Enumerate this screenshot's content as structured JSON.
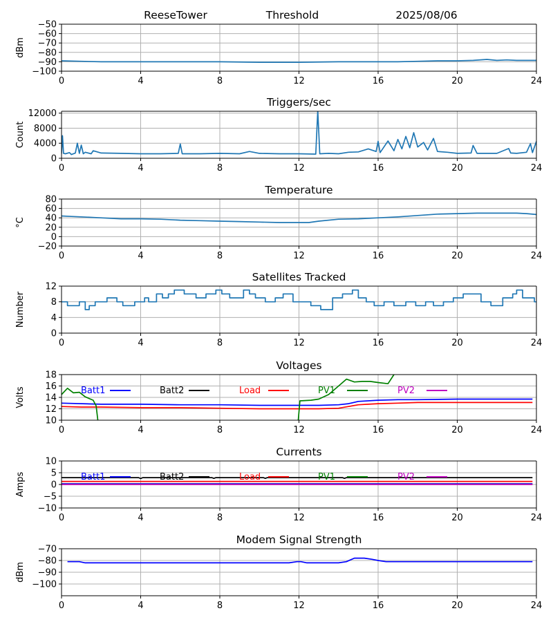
{
  "header": {
    "station": "ReeseTower",
    "panel": "Threshold",
    "date": "2025/08/06"
  },
  "chart_data": [
    {
      "id": "threshold",
      "type": "line",
      "title": "",
      "ylabel": "dBm",
      "xlim": [
        0,
        24
      ],
      "ylim": [
        -100,
        -50
      ],
      "xticks": [
        0,
        4,
        8,
        12,
        16,
        20,
        24
      ],
      "yticks": [
        -100,
        -90,
        -80,
        -70,
        -60,
        -50
      ],
      "yticklabels": [
        "−100",
        "−90",
        "−80",
        "−70",
        "−60",
        "−50"
      ],
      "grid": true,
      "series": [
        {
          "color": "#1f77b4",
          "x": [
            0,
            1,
            2,
            4,
            6,
            8,
            10,
            12,
            14,
            16,
            17,
            18,
            19,
            20,
            20.8,
            21.5,
            22,
            22.5,
            23,
            24
          ],
          "y": [
            -89,
            -89.5,
            -90,
            -90,
            -90,
            -90,
            -90.5,
            -90.5,
            -90,
            -90,
            -90,
            -89.5,
            -89,
            -89,
            -88.5,
            -87.5,
            -88.5,
            -88,
            -88.5,
            -88.5
          ]
        }
      ]
    },
    {
      "id": "triggers",
      "type": "line",
      "title": "Triggers/sec",
      "ylabel": "Count",
      "xlim": [
        0,
        24
      ],
      "ylim": [
        0,
        12500
      ],
      "xticks": [
        0,
        4,
        8,
        12,
        16,
        20,
        24
      ],
      "yticks": [
        0,
        4000,
        8000,
        12000
      ],
      "grid": true,
      "series": [
        {
          "color": "#1f77b4",
          "x": [
            0,
            0.05,
            0.1,
            0.2,
            0.4,
            0.5,
            0.7,
            0.8,
            0.9,
            1.0,
            1.1,
            1.2,
            1.5,
            1.6,
            2,
            3,
            4,
            5,
            5.9,
            6,
            6.1,
            7,
            8,
            9,
            9.5,
            10,
            11,
            12,
            12.85,
            12.95,
            13.05,
            13.5,
            14,
            14.5,
            15,
            15.5,
            15.9,
            16,
            16.1,
            16.5,
            16.8,
            17,
            17.2,
            17.4,
            17.6,
            17.8,
            18,
            18.3,
            18.5,
            18.8,
            19,
            19.5,
            20,
            20.7,
            20.8,
            21,
            22,
            22.6,
            22.7,
            23,
            23.5,
            23.7,
            23.8,
            24
          ],
          "y": [
            1200,
            6000,
            1300,
            1200,
            1500,
            1000,
            1400,
            4000,
            1300,
            3500,
            1200,
            1600,
            1200,
            2000,
            1400,
            1300,
            1200,
            1200,
            1300,
            3800,
            1200,
            1200,
            1300,
            1200,
            1800,
            1300,
            1200,
            1200,
            1100,
            12700,
            1200,
            1300,
            1200,
            1600,
            1700,
            2500,
            1800,
            4500,
            1500,
            4600,
            2000,
            5000,
            2500,
            5800,
            2800,
            6800,
            3000,
            4200,
            2200,
            5300,
            1800,
            1600,
            1300,
            1400,
            3400,
            1300,
            1300,
            2600,
            1400,
            1300,
            1600,
            3900,
            1500,
            4500
          ]
        }
      ]
    },
    {
      "id": "temperature",
      "type": "line",
      "title": "Temperature",
      "ylabel": "°C",
      "xlim": [
        0,
        24
      ],
      "ylim": [
        -20,
        80
      ],
      "xticks": [
        0,
        4,
        8,
        12,
        16,
        20,
        24
      ],
      "yticks": [
        -20,
        0,
        20,
        40,
        60,
        80
      ],
      "yticklabels": [
        "−20",
        "0",
        "20",
        "40",
        "60",
        "80"
      ],
      "grid": true,
      "series": [
        {
          "color": "#1f77b4",
          "x": [
            0,
            0.5,
            1,
            2,
            3,
            4,
            5,
            6,
            7,
            8,
            9,
            10,
            11,
            12,
            12.5,
            13,
            14,
            15,
            16,
            17,
            18,
            19,
            20,
            21,
            22,
            23,
            23.5,
            24
          ],
          "y": [
            44,
            43,
            42,
            40,
            38,
            38,
            37,
            35,
            34,
            33,
            32,
            31,
            30,
            30,
            30,
            33,
            37,
            38,
            40,
            42,
            45,
            48,
            49,
            50,
            50,
            50,
            49,
            47
          ]
        }
      ]
    },
    {
      "id": "satellites",
      "type": "line",
      "title": "Satellites Tracked",
      "ylabel": "Number",
      "xlim": [
        0,
        24
      ],
      "ylim": [
        0,
        12
      ],
      "xticks": [
        0,
        4,
        8,
        12,
        16,
        20,
        24
      ],
      "yticks": [
        0,
        4,
        8,
        12
      ],
      "grid": true,
      "series": [
        {
          "color": "#1f77b4",
          "step": true,
          "x": [
            0,
            0.3,
            0.9,
            1.2,
            1.4,
            1.7,
            2.3,
            2.8,
            3.1,
            3.7,
            4.2,
            4.4,
            4.8,
            5.1,
            5.4,
            5.7,
            6.2,
            6.8,
            7.3,
            7.8,
            8.1,
            8.5,
            9.2,
            9.5,
            9.8,
            10.3,
            10.8,
            11.2,
            11.7,
            12.6,
            13.1,
            13.7,
            14.2,
            14.7,
            15.0,
            15.4,
            15.8,
            16.3,
            16.8,
            17.4,
            17.9,
            18.4,
            18.8,
            19.3,
            19.8,
            20.3,
            21.2,
            21.7,
            22.3,
            22.8,
            23.0,
            23.3,
            23.9
          ],
          "y": [
            8,
            7,
            8,
            6,
            7,
            8,
            9,
            8,
            7,
            8,
            9,
            8,
            10,
            9,
            10,
            11,
            10,
            9,
            10,
            11,
            10,
            9,
            11,
            10,
            9,
            8,
            9,
            10,
            8,
            7,
            6,
            9,
            10,
            11,
            9,
            8,
            7,
            8,
            7,
            8,
            7,
            8,
            7,
            8,
            9,
            10,
            8,
            7,
            9,
            10,
            11,
            9,
            8
          ]
        }
      ]
    },
    {
      "id": "voltages",
      "type": "line",
      "title": "Voltages",
      "ylabel": "Volts",
      "xlim": [
        0,
        24
      ],
      "ylim": [
        10,
        18
      ],
      "xticks": [
        0,
        4,
        8,
        12,
        16,
        20,
        24
      ],
      "yticks": [
        10,
        12,
        14,
        16,
        18
      ],
      "grid": true,
      "legend": "inline-top",
      "series": [
        {
          "name": "Batt1",
          "color": "#0000ff",
          "x": [
            0,
            2,
            4,
            6,
            8,
            10,
            12,
            13,
            14,
            14.5,
            15,
            16,
            17,
            18,
            20,
            22,
            23.8
          ],
          "y": [
            13.0,
            12.8,
            12.8,
            12.7,
            12.7,
            12.6,
            12.6,
            12.6,
            12.7,
            12.9,
            13.3,
            13.5,
            13.6,
            13.6,
            13.7,
            13.7,
            13.7
          ]
        },
        {
          "name": "Batt2",
          "color": "#000000",
          "x": [],
          "y": []
        },
        {
          "name": "Load",
          "color": "#ff0000",
          "x": [
            0,
            1,
            2,
            4,
            6,
            8,
            10,
            12,
            13,
            14,
            14.5,
            15,
            15.5,
            16,
            17,
            18,
            20,
            22,
            23.8
          ],
          "y": [
            12.4,
            12.3,
            12.3,
            12.2,
            12.2,
            12.1,
            12.0,
            12.0,
            12.0,
            12.1,
            12.4,
            12.7,
            12.8,
            12.9,
            13.0,
            13.1,
            13.1,
            13.1,
            13.1
          ]
        },
        {
          "name": "PV1",
          "color": "#008000",
          "x": [
            0,
            0.3,
            0.6,
            0.9,
            1.2,
            1.6,
            1.75,
            1.85,
            11.95,
            12.05,
            12.6,
            13.0,
            13.5,
            14.0,
            14.4,
            14.8,
            15.2,
            15.6,
            16.0,
            16.5,
            16.8,
            17.0
          ],
          "y": [
            14.5,
            15.6,
            14.8,
            14.9,
            14.1,
            13.5,
            12.5,
            9.5,
            9.5,
            13.4,
            13.5,
            13.7,
            14.5,
            16.0,
            17.2,
            16.7,
            16.8,
            16.8,
            16.6,
            16.4,
            18.0,
            18.6
          ]
        },
        {
          "name": "PV2",
          "color": "#bf00bf",
          "x": [],
          "y": []
        }
      ]
    },
    {
      "id": "currents",
      "type": "line",
      "title": "Currents",
      "ylabel": "Amps",
      "xlim": [
        0,
        24
      ],
      "ylim": [
        -10,
        10
      ],
      "xticks": [
        0,
        4,
        8,
        12,
        16,
        20,
        24
      ],
      "yticks": [
        -10,
        -5,
        0,
        5,
        10
      ],
      "yticklabels": [
        "−10",
        "−5",
        "0",
        "5",
        "10"
      ],
      "grid": true,
      "legend": "inline-top",
      "series": [
        {
          "name": "Batt1",
          "color": "#0000ff",
          "x": [
            0,
            23.8
          ],
          "y": [
            0.3,
            0.3
          ]
        },
        {
          "name": "Batt2",
          "color": "#000000",
          "x": [
            0,
            3.9,
            4.0,
            4.1,
            7.6,
            7.7,
            7.8,
            10.2,
            10.3,
            10.4,
            14.2,
            14.3,
            14.4,
            23.8
          ],
          "y": [
            2.9,
            2.9,
            2.5,
            2.9,
            2.9,
            2.6,
            2.9,
            2.9,
            2.6,
            2.9,
            2.9,
            2.6,
            2.9,
            2.9
          ]
        },
        {
          "name": "Load",
          "color": "#ff0000",
          "x": [
            0,
            23.8
          ],
          "y": [
            1.3,
            1.3
          ]
        },
        {
          "name": "PV1",
          "color": "#008000",
          "x": [
            0,
            23.8
          ],
          "y": [
            0.1,
            0.1
          ]
        },
        {
          "name": "PV2",
          "color": "#bf00bf",
          "x": [
            0,
            23.8
          ],
          "y": [
            0.0,
            0.0
          ]
        }
      ]
    },
    {
      "id": "modem",
      "type": "line",
      "title": "Modem Signal Strength",
      "ylabel": "dBm",
      "xlim": [
        0,
        24
      ],
      "ylim": [
        -110,
        -70
      ],
      "xticks": [
        0,
        4,
        8,
        12,
        16,
        20,
        24
      ],
      "yticks": [
        -100,
        -90,
        -80,
        -70
      ],
      "yticklabels": [
        "−100",
        "−90",
        "−80",
        "−70"
      ],
      "grid": true,
      "series": [
        {
          "color": "#0000ff",
          "x": [
            0.3,
            0.9,
            1.2,
            4,
            8,
            11.5,
            11.9,
            12.1,
            12.4,
            14,
            14.4,
            14.8,
            15.3,
            15.7,
            16.0,
            16.4,
            17,
            20,
            23.8
          ],
          "y": [
            -81,
            -81,
            -82,
            -82,
            -82,
            -82,
            -81,
            -81,
            -82,
            -82,
            -81,
            -78,
            -78,
            -79,
            -80,
            -81,
            -81,
            -81,
            -81
          ]
        }
      ]
    }
  ]
}
